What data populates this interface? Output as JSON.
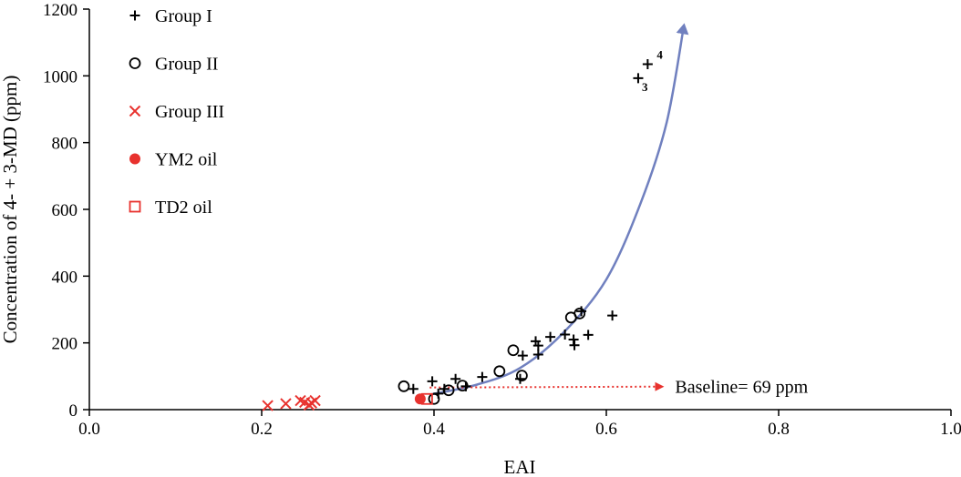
{
  "chart_data": {
    "type": "scatter",
    "title": "",
    "xlabel": "EAI",
    "ylabel": "Concentration of 4- + 3-MD (ppm)",
    "xlim": [
      0.0,
      1.0
    ],
    "ylim": [
      0,
      1200
    ],
    "x_ticks": [
      "0.0",
      "0.2",
      "0.4",
      "0.6",
      "0.8",
      "1.0"
    ],
    "y_ticks": [
      "0",
      "200",
      "400",
      "600",
      "800",
      "1000",
      "1200"
    ],
    "legend_position": "top-left",
    "series": [
      {
        "name": "Group I",
        "marker": "plus",
        "color": "#000000",
        "points": [
          [
            0.376,
            62
          ],
          [
            0.398,
            85
          ],
          [
            0.405,
            48
          ],
          [
            0.412,
            62
          ],
          [
            0.425,
            92
          ],
          [
            0.437,
            70
          ],
          [
            0.456,
            98
          ],
          [
            0.5,
            92
          ],
          [
            0.503,
            162
          ],
          [
            0.518,
            205
          ],
          [
            0.521,
            192
          ],
          [
            0.521,
            165
          ],
          [
            0.535,
            218
          ],
          [
            0.552,
            225
          ],
          [
            0.562,
            210
          ],
          [
            0.563,
            193
          ],
          [
            0.571,
            295
          ],
          [
            0.579,
            224
          ],
          [
            0.607,
            282
          ],
          [
            0.637,
            993
          ],
          [
            0.648,
            1035
          ]
        ]
      },
      {
        "name": "Group II",
        "marker": "circle",
        "color": "#000000",
        "points": [
          [
            0.365,
            70
          ],
          [
            0.4,
            32
          ],
          [
            0.417,
            58
          ],
          [
            0.433,
            72
          ],
          [
            0.476,
            115
          ],
          [
            0.492,
            178
          ],
          [
            0.502,
            102
          ],
          [
            0.559,
            276
          ],
          [
            0.569,
            288
          ]
        ]
      },
      {
        "name": "Group III",
        "marker": "x",
        "color": "#e8322e",
        "points": [
          [
            0.207,
            12
          ],
          [
            0.228,
            18
          ],
          [
            0.245,
            27
          ],
          [
            0.25,
            22
          ],
          [
            0.255,
            14
          ],
          [
            0.258,
            20
          ],
          [
            0.262,
            27
          ]
        ]
      },
      {
        "name": "YM2 oil",
        "marker": "filled-circle",
        "color": "#e8322e",
        "points": [
          [
            0.384,
            32
          ]
        ]
      },
      {
        "name": "TD2 oil",
        "marker": "square",
        "color": "#e8322e",
        "points": [
          [
            0.392,
            32
          ]
        ]
      }
    ],
    "point_labels": [
      {
        "text": "3",
        "x": 0.637,
        "y": 993
      },
      {
        "text": "4",
        "x": 0.648,
        "y": 1035
      }
    ],
    "trend_curve": {
      "color": "#7080bf",
      "points": [
        [
          0.395,
          45
        ],
        [
          0.45,
          75
        ],
        [
          0.5,
          125
        ],
        [
          0.55,
          230
        ],
        [
          0.6,
          390
        ],
        [
          0.64,
          620
        ],
        [
          0.67,
          860
        ],
        [
          0.69,
          1150
        ]
      ]
    },
    "baseline": {
      "label": "Baseline= 69 ppm",
      "value": 69,
      "y": 69,
      "x_start": 0.395,
      "x_end": 0.665,
      "color": "#e8322e"
    }
  }
}
